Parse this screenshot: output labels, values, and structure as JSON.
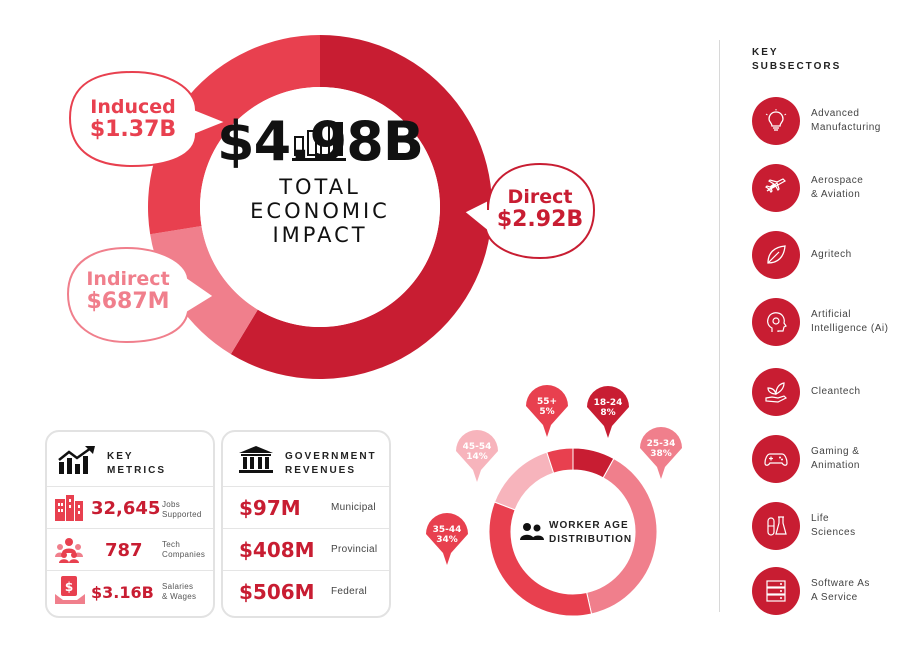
{
  "economic_impact": {
    "total_value": "$4.98B",
    "total_label": "TOTAL\nECONOMIC\nIMPACT",
    "icon": "bar-chart-icon",
    "components": [
      {
        "name": "Direct",
        "value_label": "$2.92B",
        "value": 2.92,
        "color": "#c81d32"
      },
      {
        "name": "Indirect",
        "value_label": "$687M",
        "value": 0.687,
        "color": "#f07f8c"
      },
      {
        "name": "Induced",
        "value_label": "$1.37B",
        "value": 1.37,
        "color": "#e8404f"
      }
    ]
  },
  "chart_data": {
    "type": "pie",
    "title": "WORKER AGE\nDISTRIBUTION",
    "categories": [
      "18-24",
      "25-34",
      "35-44",
      "45-54",
      "55+"
    ],
    "values": [
      8,
      38,
      34,
      14,
      5
    ],
    "labels": [
      "8%",
      "38%",
      "34%",
      "14%",
      "5%"
    ],
    "colors": [
      "#c81d32",
      "#f07f8c",
      "#e8404f",
      "#f7b4bc",
      "#e8404f"
    ],
    "legend": "none"
  },
  "key_metrics": {
    "title": "KEY\nMETRICS",
    "icon": "trend-chart-icon",
    "items": [
      {
        "value": "32,645",
        "desc": "Jobs\nSupported",
        "icon": "buildings-icon"
      },
      {
        "value": "787",
        "desc": "Tech\nCompanies",
        "icon": "people-group-icon"
      },
      {
        "value": "$3.16B",
        "desc": "Salaries\n& Wages",
        "icon": "money-hand-icon"
      }
    ]
  },
  "government_revenues": {
    "title": "GOVERNMENT\nREVENUES",
    "icon": "government-building-icon",
    "items": [
      {
        "value": "$97M",
        "label": "Municipal"
      },
      {
        "value": "$408M",
        "label": "Provincial"
      },
      {
        "value": "$506M",
        "label": "Federal"
      }
    ]
  },
  "subsectors": {
    "title": "KEY\nSUBSECTORS",
    "items": [
      {
        "label": "Advanced\nManufacturing",
        "icon": "lightbulb-icon"
      },
      {
        "label": "Aerospace\n& Aviation",
        "icon": "airplane-icon"
      },
      {
        "label": "Agritech",
        "icon": "leaf-icon"
      },
      {
        "label": "Artificial\nIntelligence (Ai)",
        "icon": "ai-head-icon"
      },
      {
        "label": "Cleantech",
        "icon": "plant-hand-icon"
      },
      {
        "label": "Gaming &\nAnimation",
        "icon": "gamepad-icon"
      },
      {
        "label": "Life\nSciences",
        "icon": "flask-icon"
      },
      {
        "label": "Software As\nA Service",
        "icon": "server-icon"
      }
    ]
  }
}
